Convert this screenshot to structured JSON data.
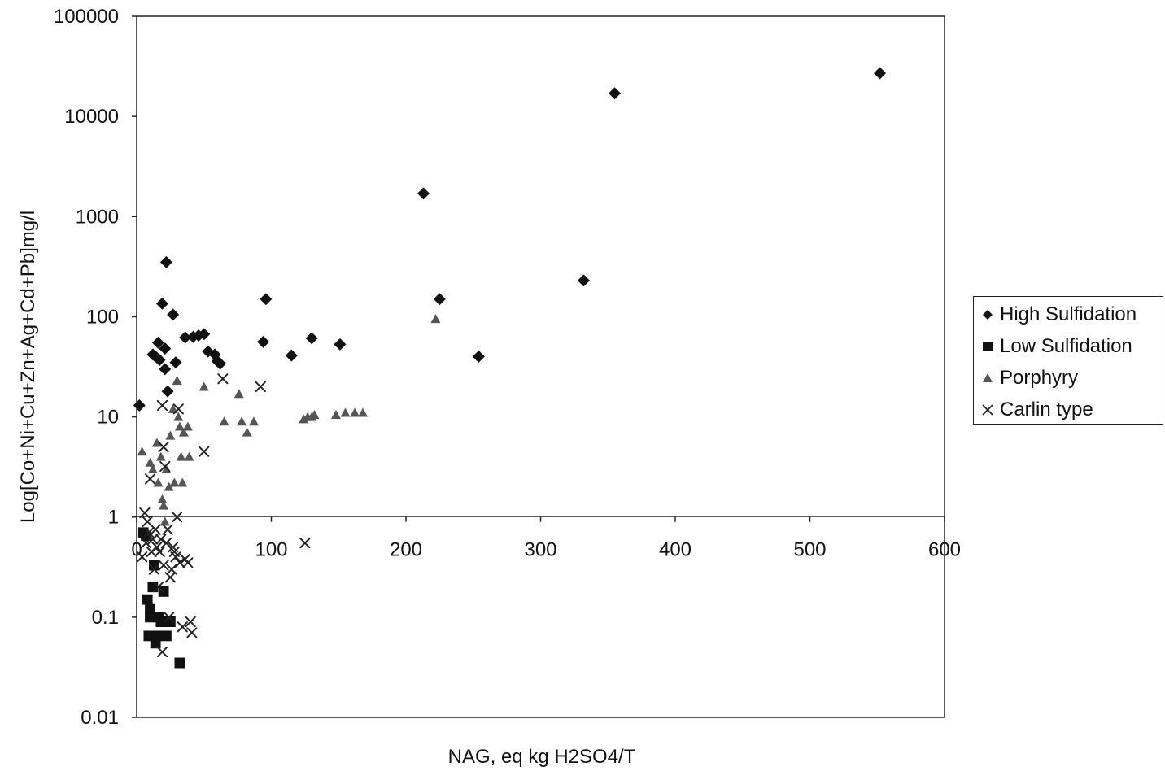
{
  "chart_data": {
    "type": "scatter",
    "title": "",
    "xlabel": "NAG, eq kg H2SO4/T",
    "ylabel": "Log[Co+Ni+Cu+Zn+Ag+Cd+Pb]mg/l",
    "xlim": [
      0,
      600
    ],
    "ylim": [
      0.01,
      100000
    ],
    "yscale": "log",
    "x_ticks": [
      "0",
      "100",
      "200",
      "300",
      "400",
      "500",
      "600"
    ],
    "y_ticks": [
      "0.01",
      "0.1",
      "1",
      "10",
      "100",
      "1000",
      "10000",
      "100000"
    ],
    "grid": false,
    "legend_position": "right",
    "series": [
      {
        "name": "High Sulfidation",
        "marker": "diamond",
        "points": [
          [
            2,
            13
          ],
          [
            12,
            42
          ],
          [
            14,
            40
          ],
          [
            16,
            55
          ],
          [
            17,
            37
          ],
          [
            19,
            135
          ],
          [
            21,
            48
          ],
          [
            21,
            30
          ],
          [
            22,
            350
          ],
          [
            23,
            18
          ],
          [
            27,
            105
          ],
          [
            29,
            35
          ],
          [
            36,
            62
          ],
          [
            42,
            63
          ],
          [
            46,
            65
          ],
          [
            50,
            67
          ],
          [
            53,
            45
          ],
          [
            58,
            42
          ],
          [
            60,
            36
          ],
          [
            62,
            34
          ],
          [
            94,
            56
          ],
          [
            96,
            150
          ],
          [
            115,
            41
          ],
          [
            130,
            61
          ],
          [
            151,
            53
          ],
          [
            213,
            1700
          ],
          [
            225,
            150
          ],
          [
            254,
            40
          ],
          [
            332,
            230
          ],
          [
            355,
            17000
          ],
          [
            552,
            27000
          ]
        ]
      },
      {
        "name": "Low Sulfidation",
        "marker": "square",
        "points": [
          [
            5,
            0.7
          ],
          [
            7,
            0.65
          ],
          [
            8,
            0.15
          ],
          [
            9,
            0.065
          ],
          [
            10,
            0.1
          ],
          [
            10,
            0.12
          ],
          [
            12,
            0.2
          ],
          [
            13,
            0.33
          ],
          [
            14,
            0.055
          ],
          [
            15,
            0.065
          ],
          [
            16,
            0.1
          ],
          [
            18,
            0.09
          ],
          [
            20,
            0.18
          ],
          [
            22,
            0.065
          ],
          [
            25,
            0.09
          ],
          [
            32,
            0.035
          ]
        ]
      },
      {
        "name": "Porphyry",
        "marker": "triangle",
        "points": [
          [
            4,
            4.5
          ],
          [
            10,
            3.5
          ],
          [
            12,
            3
          ],
          [
            15,
            5.5
          ],
          [
            16,
            2.2
          ],
          [
            18,
            4
          ],
          [
            19,
            1.5
          ],
          [
            20,
            1.3
          ],
          [
            21,
            0.9
          ],
          [
            22,
            3
          ],
          [
            24,
            2
          ],
          [
            25,
            6.5
          ],
          [
            27,
            12
          ],
          [
            28,
            2.2
          ],
          [
            30,
            23
          ],
          [
            31,
            10
          ],
          [
            32,
            8
          ],
          [
            33,
            4
          ],
          [
            34,
            2.2
          ],
          [
            35,
            7
          ],
          [
            38,
            8
          ],
          [
            39,
            4
          ],
          [
            50,
            20
          ],
          [
            65,
            9
          ],
          [
            76,
            17
          ],
          [
            78,
            9
          ],
          [
            82,
            7
          ],
          [
            87,
            9
          ],
          [
            124,
            9.5
          ],
          [
            127,
            10
          ],
          [
            130,
            10
          ],
          [
            132,
            10.5
          ],
          [
            148,
            10.5
          ],
          [
            155,
            11
          ],
          [
            162,
            11
          ],
          [
            168,
            11
          ],
          [
            222,
            95
          ]
        ]
      },
      {
        "name": "Carlin type",
        "marker": "x",
        "points": [
          [
            4,
            0.4
          ],
          [
            6,
            1.1
          ],
          [
            7,
            0.55
          ],
          [
            8,
            0.9
          ],
          [
            9,
            0.7
          ],
          [
            10,
            2.4
          ],
          [
            11,
            0.45
          ],
          [
            12,
            0.6
          ],
          [
            13,
            0.3
          ],
          [
            14,
            0.75
          ],
          [
            15,
            0.5
          ],
          [
            16,
            0.2
          ],
          [
            17,
            0.45
          ],
          [
            18,
            0.6
          ],
          [
            19,
            13
          ],
          [
            20,
            5
          ],
          [
            20,
            0.33
          ],
          [
            21,
            3.2
          ],
          [
            22,
            0.55
          ],
          [
            23,
            0.75
          ],
          [
            24,
            0.1
          ],
          [
            25,
            0.25
          ],
          [
            26,
            0.3
          ],
          [
            27,
            0.5
          ],
          [
            28,
            0.45
          ],
          [
            29,
            0.4
          ],
          [
            30,
            1.0
          ],
          [
            31,
            12
          ],
          [
            32,
            0.35
          ],
          [
            34,
            0.08
          ],
          [
            36,
            0.38
          ],
          [
            38,
            0.35
          ],
          [
            40,
            0.09
          ],
          [
            41,
            0.07
          ],
          [
            50,
            4.5
          ],
          [
            64,
            24
          ],
          [
            92,
            20
          ],
          [
            125,
            0.55
          ],
          [
            19,
            0.045
          ]
        ]
      }
    ]
  }
}
